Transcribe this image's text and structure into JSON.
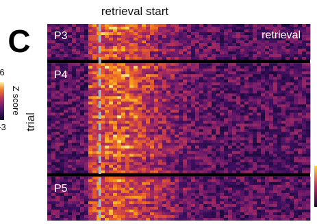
{
  "chart_data": {
    "type": "heatmap",
    "panel_letter": "C",
    "header": "retrieval start",
    "corner_label": "retrieval",
    "ylabel": "trial",
    "colorbar": {
      "label": "Z score",
      "tick_top": "6",
      "tick_bottom": "-3"
    },
    "groups": [
      {
        "name": "P3",
        "rows": 13
      },
      {
        "name": "P4",
        "rows": 40
      },
      {
        "name": "P5",
        "rows": 16
      }
    ],
    "x_range": [
      -5,
      20
    ],
    "event_x": 0,
    "colors": {
      "low": "#1b0a3d",
      "mid": "#a02a63",
      "high": "#fcd54a",
      "event_line": "#a9b2b8",
      "separator": "#000000"
    }
  }
}
